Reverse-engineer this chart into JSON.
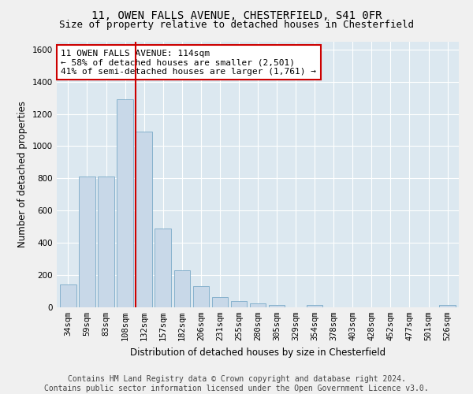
{
  "title1": "11, OWEN FALLS AVENUE, CHESTERFIELD, S41 0FR",
  "title2": "Size of property relative to detached houses in Chesterfield",
  "xlabel": "Distribution of detached houses by size in Chesterfield",
  "ylabel": "Number of detached properties",
  "categories": [
    "34sqm",
    "59sqm",
    "83sqm",
    "108sqm",
    "132sqm",
    "157sqm",
    "182sqm",
    "206sqm",
    "231sqm",
    "255sqm",
    "280sqm",
    "305sqm",
    "329sqm",
    "354sqm",
    "378sqm",
    "403sqm",
    "428sqm",
    "452sqm",
    "477sqm",
    "501sqm",
    "526sqm"
  ],
  "values": [
    140,
    810,
    810,
    1290,
    1090,
    490,
    230,
    130,
    65,
    40,
    25,
    15,
    0,
    15,
    0,
    0,
    0,
    0,
    0,
    0,
    15
  ],
  "bar_color": "#c8d8e8",
  "bar_edge_color": "#7aaac8",
  "vline_x": 3.55,
  "vline_color": "#cc0000",
  "annotation_text": "11 OWEN FALLS AVENUE: 114sqm\n← 58% of detached houses are smaller (2,501)\n41% of semi-detached houses are larger (1,761) →",
  "annotation_box_color": "#cc0000",
  "ylim": [
    0,
    1650
  ],
  "yticks": [
    0,
    200,
    400,
    600,
    800,
    1000,
    1200,
    1400,
    1600
  ],
  "footer_text": "Contains HM Land Registry data © Crown copyright and database right 2024.\nContains public sector information licensed under the Open Government Licence v3.0.",
  "fig_bg_color": "#f0f0f0",
  "plot_bg_color": "#dce8f0",
  "grid_color": "#ffffff",
  "title_fontsize": 10,
  "subtitle_fontsize": 9,
  "axis_label_fontsize": 8.5,
  "tick_fontsize": 7.5,
  "footer_fontsize": 7,
  "ann_fontsize": 8
}
